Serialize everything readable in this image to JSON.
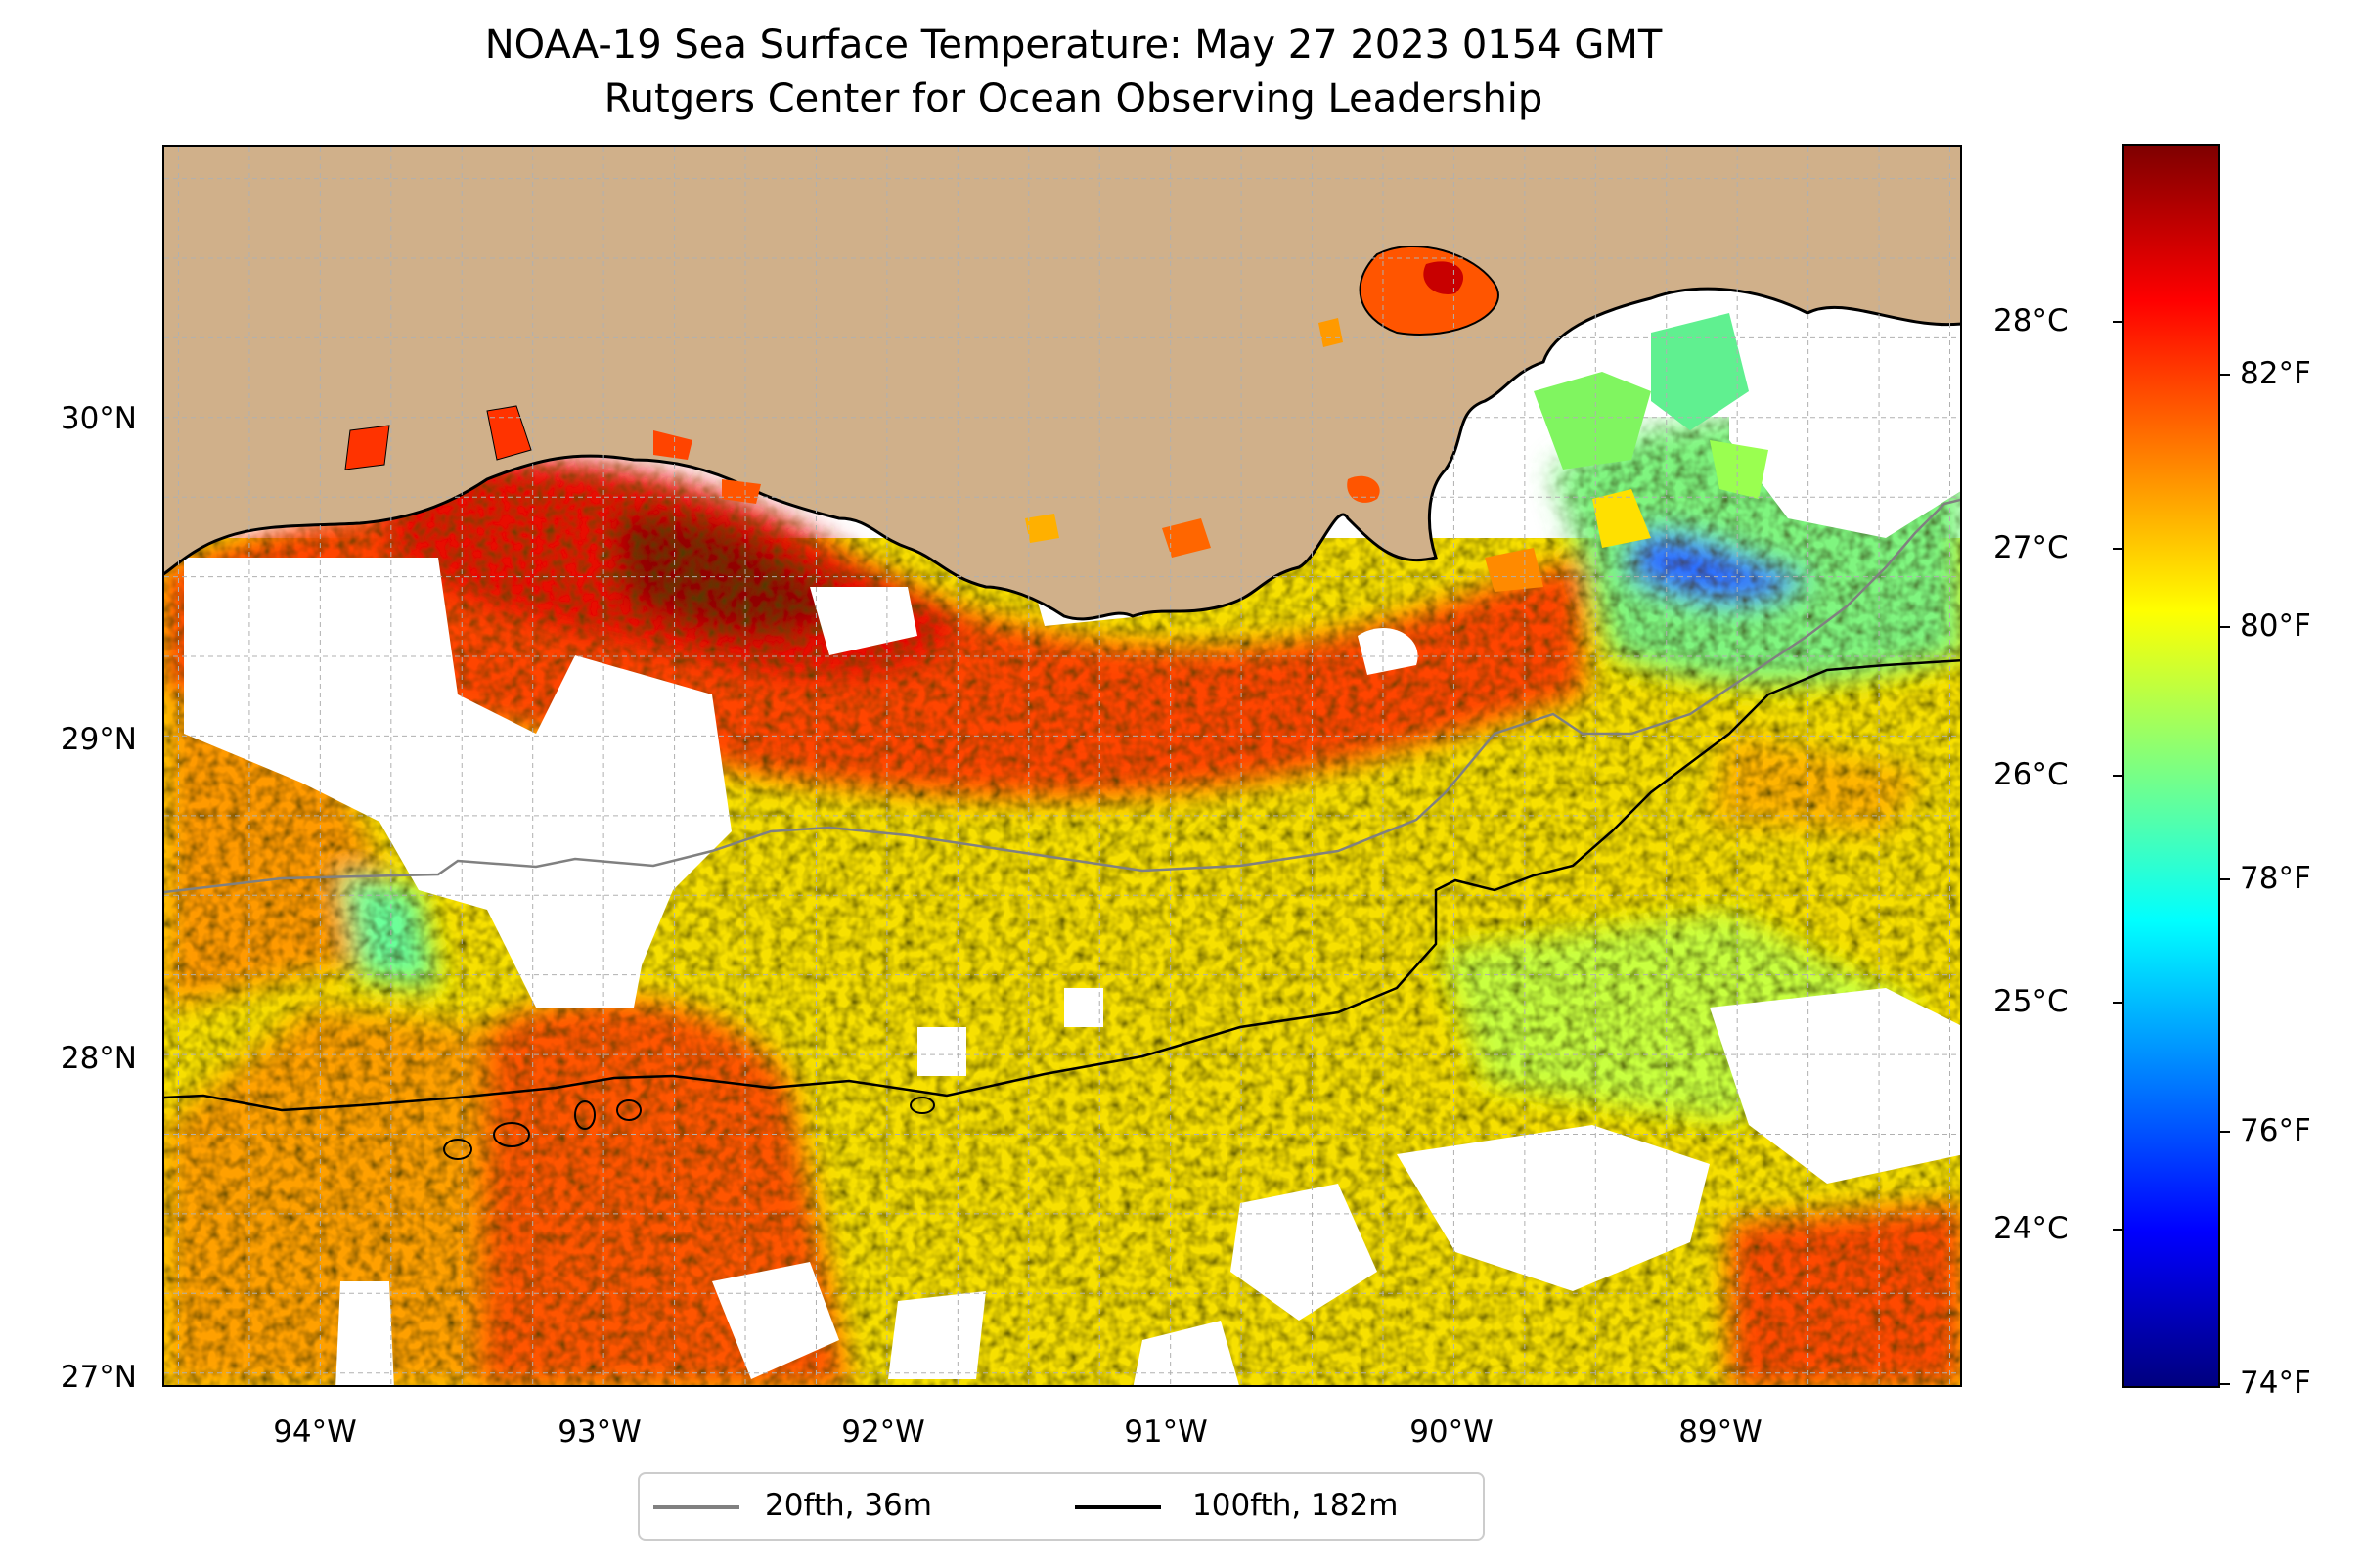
{
  "title": {
    "line1": "NOAA-19 Sea Surface Temperature: May 27 2023 0154 GMT",
    "line2": "Rutgers Center for Ocean Observing Leadership"
  },
  "map": {
    "lon_range": [
      -94.55,
      -88.2
    ],
    "lat_range": [
      26.95,
      30.85
    ],
    "lon_ticks": [
      {
        "value": -94,
        "label": "94°W"
      },
      {
        "value": -93,
        "label": "93°W"
      },
      {
        "value": -92,
        "label": "92°W"
      },
      {
        "value": -91,
        "label": "91°W"
      },
      {
        "value": -90,
        "label": "90°W"
      },
      {
        "value": -89,
        "label": "89°W"
      }
    ],
    "lat_ticks": [
      {
        "value": 30,
        "label": "30°N"
      },
      {
        "value": 29,
        "label": "29°N"
      },
      {
        "value": 28,
        "label": "28°N"
      },
      {
        "value": 27,
        "label": "27°N"
      }
    ],
    "gridlines": true,
    "land_color": "#d0b08a",
    "nodata_color": "#ffffff",
    "contours": [
      {
        "label": "20fth, 36m",
        "color": "#808080"
      },
      {
        "label": "100fth, 182m",
        "color": "#000000"
      }
    ]
  },
  "colorbar": {
    "colormap": "jet",
    "celsius_ticks": [
      "28°C",
      "27°C",
      "26°C",
      "25°C",
      "24°C"
    ],
    "fahrenheit_ticks": [
      "82°F",
      "80°F",
      "78°F",
      "76°F",
      "74°F"
    ],
    "colors": [
      "#00007f",
      "#0000ff",
      "#007fff",
      "#00ffff",
      "#7fff7f",
      "#ffff00",
      "#ff7f00",
      "#ff0000",
      "#7f0000"
    ]
  },
  "legend": {
    "entries": [
      {
        "label": "20fth, 36m",
        "color": "#808080"
      },
      {
        "label": "100fth, 182m",
        "color": "#000000"
      }
    ]
  }
}
